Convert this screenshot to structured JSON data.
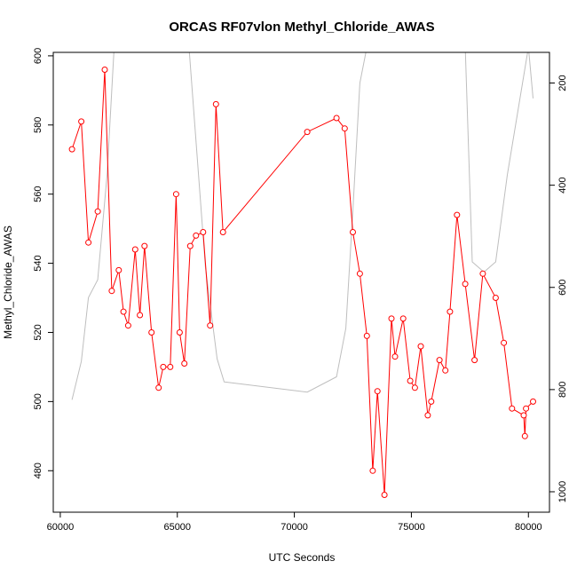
{
  "chart_data": {
    "type": "line",
    "title": "ORCAS RF07vlon Methyl_Chloride_AWAS",
    "xlabel": "UTC Seconds",
    "ylabel": "Methyl_Chloride_AWAS",
    "xlim": [
      59700,
      80900
    ],
    "ylim": [
      468,
      601
    ],
    "x_ticks": [
      60000,
      65000,
      70000,
      75000,
      80000
    ],
    "x_tick_labels": [
      "60000",
      "65000",
      "70000",
      "75000",
      "80000"
    ],
    "y_ticks": [
      480,
      500,
      520,
      540,
      560,
      580,
      600
    ],
    "y_tick_labels": [
      "480",
      "500",
      "520",
      "540",
      "560",
      "580",
      "600"
    ],
    "y2_ticks": [
      200,
      400,
      600,
      800,
      1000
    ],
    "y2_tick_labels": [
      "200",
      "400",
      "600",
      "800",
      "1000"
    ],
    "y2lim": [
      1040,
      140
    ],
    "grid": false,
    "series": [
      {
        "color": "#ff0000",
        "marker": "open-circle",
        "x": [
          60500,
          60900,
          61200,
          61600,
          61900,
          62200,
          62500,
          62700,
          62900,
          63200,
          63400,
          63600,
          63900,
          64200,
          64400,
          64700,
          64950,
          65100,
          65300,
          65550,
          65800,
          66100,
          66400,
          66650,
          66950,
          70550,
          71800,
          72150,
          72500,
          72800,
          73100,
          73350,
          73550,
          73850,
          74150,
          74300,
          74650,
          74950,
          75150,
          75400,
          75700,
          75850,
          76200,
          76450,
          76650,
          76950,
          77300,
          77700,
          78050,
          78600,
          78950,
          79300,
          79800,
          79850,
          79900,
          80200
        ],
        "values": [
          573,
          581,
          546,
          555,
          596,
          532,
          538,
          526,
          522,
          544,
          525,
          545,
          520,
          504,
          510,
          510,
          560,
          520,
          511,
          545,
          548,
          549,
          522,
          586,
          549,
          578,
          582,
          579,
          549,
          537,
          519,
          480,
          503,
          473,
          524,
          513,
          524,
          506,
          504,
          516,
          496,
          500,
          512,
          509,
          526,
          554,
          534,
          512,
          537,
          530,
          517,
          498,
          496,
          490,
          498,
          500
        ]
      },
      {
        "color": "#bebebe",
        "axis": "right",
        "x": [
          60500,
          60900,
          61200,
          61600,
          62000,
          62300,
          65500,
          66200,
          66700,
          67000,
          70550,
          71800,
          72200,
          72500,
          72800,
          73100,
          77300,
          77600,
          78100,
          78600,
          79100,
          80000,
          80200
        ],
        "values": [
          820,
          745,
          620,
          585,
          380,
          130,
          130,
          560,
          740,
          785,
          805,
          775,
          680,
          450,
          200,
          130,
          130,
          550,
          570,
          550,
          380,
          130,
          230
        ]
      }
    ]
  }
}
